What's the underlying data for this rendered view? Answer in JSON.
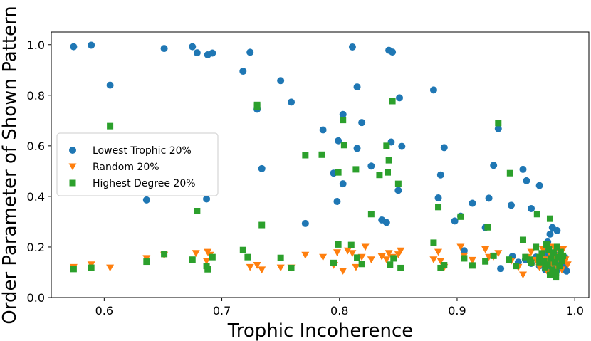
{
  "chart_data": {
    "type": "scatter",
    "xlabel": "Trophic Incoherence",
    "ylabel": "Order Parameter of Shown Pattern",
    "xlim": [
      0.555,
      1.012
    ],
    "ylim": [
      0.0,
      1.05
    ],
    "xticks": [
      0.6,
      0.7,
      0.8,
      0.9,
      1.0
    ],
    "xtick_labels": [
      "0.6",
      "0.7",
      "0.8",
      "0.9",
      "1.0"
    ],
    "yticks": [
      0.0,
      0.2,
      0.4,
      0.6,
      0.8,
      1.0
    ],
    "ytick_labels": [
      "0.0",
      "0.2",
      "0.4",
      "0.6",
      "0.8",
      "1.0"
    ],
    "grid": false,
    "legend_position": "center-left",
    "series": [
      {
        "name": "Lowest Trophic 20%",
        "marker": "circle",
        "color": "#1f77b4",
        "points": [
          [
            0.574,
            0.992
          ],
          [
            0.589,
            0.998
          ],
          [
            0.605,
            0.84
          ],
          [
            0.636,
            0.386
          ],
          [
            0.651,
            0.985
          ],
          [
            0.675,
            0.992
          ],
          [
            0.679,
            0.968
          ],
          [
            0.687,
            0.39
          ],
          [
            0.688,
            0.96
          ],
          [
            0.692,
            0.967
          ],
          [
            0.718,
            0.895
          ],
          [
            0.724,
            0.97
          ],
          [
            0.73,
            0.745
          ],
          [
            0.734,
            0.51
          ],
          [
            0.75,
            0.858
          ],
          [
            0.759,
            0.773
          ],
          [
            0.771,
            0.293
          ],
          [
            0.786,
            0.663
          ],
          [
            0.795,
            0.492
          ],
          [
            0.798,
            0.38
          ],
          [
            0.799,
            0.62
          ],
          [
            0.803,
            0.724
          ],
          [
            0.803,
            0.45
          ],
          [
            0.811,
            0.991
          ],
          [
            0.815,
            0.833
          ],
          [
            0.815,
            0.59
          ],
          [
            0.819,
            0.692
          ],
          [
            0.827,
            0.52
          ],
          [
            0.836,
            0.307
          ],
          [
            0.84,
            0.297
          ],
          [
            0.842,
            0.978
          ],
          [
            0.844,
            0.615
          ],
          [
            0.845,
            0.971
          ],
          [
            0.85,
            0.424
          ],
          [
            0.851,
            0.79
          ],
          [
            0.853,
            0.598
          ],
          [
            0.88,
            0.821
          ],
          [
            0.884,
            0.394
          ],
          [
            0.886,
            0.485
          ],
          [
            0.889,
            0.593
          ],
          [
            0.898,
            0.303
          ],
          [
            0.903,
            0.322
          ],
          [
            0.906,
            0.185
          ],
          [
            0.913,
            0.373
          ],
          [
            0.924,
            0.277
          ],
          [
            0.927,
            0.393
          ],
          [
            0.931,
            0.523
          ],
          [
            0.935,
            0.668
          ],
          [
            0.946,
            0.365
          ],
          [
            0.956,
            0.507
          ],
          [
            0.959,
            0.462
          ],
          [
            0.963,
            0.352
          ],
          [
            0.97,
            0.443
          ],
          [
            0.975,
            0.18
          ],
          [
            0.977,
            0.22
          ],
          [
            0.979,
            0.251
          ],
          [
            0.981,
            0.277
          ],
          [
            0.985,
            0.265
          ],
          [
            0.937,
            0.115
          ],
          [
            0.947,
            0.163
          ],
          [
            0.952,
            0.14
          ],
          [
            0.958,
            0.15
          ],
          [
            0.963,
            0.135
          ],
          [
            0.967,
            0.16
          ],
          [
            0.97,
            0.125
          ],
          [
            0.973,
            0.145
          ],
          [
            0.975,
            0.11
          ],
          [
            0.977,
            0.13
          ],
          [
            0.978,
            0.16
          ],
          [
            0.98,
            0.105
          ],
          [
            0.981,
            0.145
          ],
          [
            0.982,
            0.12
          ],
          [
            0.983,
            0.17
          ],
          [
            0.984,
            0.135
          ],
          [
            0.985,
            0.11
          ],
          [
            0.986,
            0.15
          ],
          [
            0.987,
            0.125
          ],
          [
            0.988,
            0.165
          ],
          [
            0.989,
            0.14
          ],
          [
            0.99,
            0.115
          ],
          [
            0.991,
            0.16
          ],
          [
            0.992,
            0.13
          ],
          [
            0.993,
            0.105
          ],
          [
            0.988,
            0.15
          ],
          [
            0.984,
            0.1
          ]
        ]
      },
      {
        "name": "Random 20%",
        "marker": "triangle-down",
        "color": "#ff7f0e",
        "points": [
          [
            0.574,
            0.12
          ],
          [
            0.589,
            0.13
          ],
          [
            0.605,
            0.118
          ],
          [
            0.636,
            0.155
          ],
          [
            0.651,
            0.168
          ],
          [
            0.678,
            0.175
          ],
          [
            0.687,
            0.145
          ],
          [
            0.688,
            0.18
          ],
          [
            0.69,
            0.168
          ],
          [
            0.724,
            0.12
          ],
          [
            0.73,
            0.128
          ],
          [
            0.734,
            0.11
          ],
          [
            0.75,
            0.118
          ],
          [
            0.759,
            0.118
          ],
          [
            0.771,
            0.168
          ],
          [
            0.786,
            0.16
          ],
          [
            0.795,
            0.128
          ],
          [
            0.798,
            0.178
          ],
          [
            0.803,
            0.105
          ],
          [
            0.807,
            0.185
          ],
          [
            0.811,
            0.175
          ],
          [
            0.814,
            0.12
          ],
          [
            0.819,
            0.16
          ],
          [
            0.822,
            0.2
          ],
          [
            0.827,
            0.15
          ],
          [
            0.836,
            0.162
          ],
          [
            0.84,
            0.15
          ],
          [
            0.842,
            0.175
          ],
          [
            0.845,
            0.16
          ],
          [
            0.85,
            0.17
          ],
          [
            0.852,
            0.185
          ],
          [
            0.88,
            0.15
          ],
          [
            0.884,
            0.18
          ],
          [
            0.886,
            0.145
          ],
          [
            0.889,
            0.12
          ],
          [
            0.903,
            0.2
          ],
          [
            0.906,
            0.165
          ],
          [
            0.913,
            0.148
          ],
          [
            0.924,
            0.19
          ],
          [
            0.927,
            0.16
          ],
          [
            0.931,
            0.162
          ],
          [
            0.935,
            0.175
          ],
          [
            0.946,
            0.145
          ],
          [
            0.952,
            0.12
          ],
          [
            0.956,
            0.09
          ],
          [
            0.96,
            0.16
          ],
          [
            0.963,
            0.18
          ],
          [
            0.967,
            0.148
          ],
          [
            0.97,
            0.12
          ],
          [
            0.973,
            0.19
          ],
          [
            0.975,
            0.15
          ],
          [
            0.977,
            0.1
          ],
          [
            0.979,
            0.17
          ],
          [
            0.981,
            0.13
          ],
          [
            0.983,
            0.16
          ],
          [
            0.985,
            0.12
          ],
          [
            0.987,
            0.18
          ],
          [
            0.988,
            0.14
          ],
          [
            0.989,
            0.11
          ],
          [
            0.99,
            0.19
          ],
          [
            0.992,
            0.15
          ],
          [
            0.994,
            0.13
          ],
          [
            0.982,
            0.2
          ],
          [
            0.986,
            0.165
          ],
          [
            0.978,
            0.145
          ]
        ]
      },
      {
        "name": "Highest Degree 20%",
        "marker": "square",
        "color": "#2ca02c",
        "points": [
          [
            0.574,
            0.113
          ],
          [
            0.589,
            0.118
          ],
          [
            0.605,
            0.678
          ],
          [
            0.636,
            0.142
          ],
          [
            0.651,
            0.172
          ],
          [
            0.675,
            0.15
          ],
          [
            0.679,
            0.342
          ],
          [
            0.687,
            0.125
          ],
          [
            0.688,
            0.112
          ],
          [
            0.692,
            0.16
          ],
          [
            0.718,
            0.188
          ],
          [
            0.722,
            0.16
          ],
          [
            0.73,
            0.762
          ],
          [
            0.73,
            0.755
          ],
          [
            0.734,
            0.287
          ],
          [
            0.75,
            0.157
          ],
          [
            0.759,
            0.117
          ],
          [
            0.771,
            0.563
          ],
          [
            0.785,
            0.565
          ],
          [
            0.795,
            0.137
          ],
          [
            0.799,
            0.21
          ],
          [
            0.799,
            0.495
          ],
          [
            0.803,
            0.702
          ],
          [
            0.804,
            0.603
          ],
          [
            0.81,
            0.208
          ],
          [
            0.814,
            0.507
          ],
          [
            0.815,
            0.158
          ],
          [
            0.819,
            0.133
          ],
          [
            0.827,
            0.33
          ],
          [
            0.834,
            0.485
          ],
          [
            0.84,
            0.6
          ],
          [
            0.841,
            0.495
          ],
          [
            0.842,
            0.543
          ],
          [
            0.843,
            0.13
          ],
          [
            0.845,
            0.777
          ],
          [
            0.846,
            0.155
          ],
          [
            0.85,
            0.45
          ],
          [
            0.852,
            0.117
          ],
          [
            0.88,
            0.217
          ],
          [
            0.884,
            0.358
          ],
          [
            0.886,
            0.117
          ],
          [
            0.889,
            0.128
          ],
          [
            0.903,
            0.32
          ],
          [
            0.906,
            0.155
          ],
          [
            0.913,
            0.127
          ],
          [
            0.924,
            0.143
          ],
          [
            0.926,
            0.278
          ],
          [
            0.931,
            0.165
          ],
          [
            0.935,
            0.69
          ],
          [
            0.945,
            0.492
          ],
          [
            0.956,
            0.228
          ],
          [
            0.958,
            0.16
          ],
          [
            0.963,
            0.138
          ],
          [
            0.967,
            0.2
          ],
          [
            0.968,
            0.33
          ],
          [
            0.97,
            0.16
          ],
          [
            0.972,
            0.175
          ],
          [
            0.974,
            0.145
          ],
          [
            0.976,
            0.21
          ],
          [
            0.977,
            0.13
          ],
          [
            0.978,
            0.19
          ],
          [
            0.979,
            0.312
          ],
          [
            0.98,
            0.155
          ],
          [
            0.981,
            0.11
          ],
          [
            0.982,
            0.178
          ],
          [
            0.983,
            0.14
          ],
          [
            0.984,
            0.1
          ],
          [
            0.985,
            0.2
          ],
          [
            0.986,
            0.16
          ],
          [
            0.987,
            0.125
          ],
          [
            0.988,
            0.18
          ],
          [
            0.989,
            0.145
          ],
          [
            0.99,
            0.165
          ],
          [
            0.979,
            0.09
          ],
          [
            0.975,
            0.12
          ],
          [
            0.984,
            0.08
          ],
          [
            0.97,
            0.14
          ],
          [
            0.962,
            0.15
          ],
          [
            0.95,
            0.125
          ],
          [
            0.944,
            0.15
          ]
        ]
      }
    ]
  }
}
